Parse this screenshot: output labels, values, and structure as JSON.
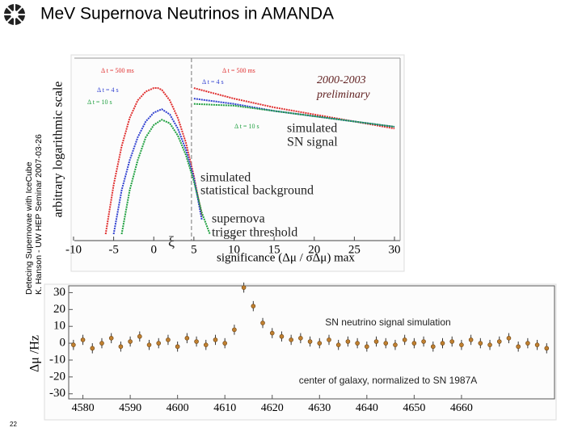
{
  "slide": {
    "title": "MeV Supernova Neutrinos in AMANDA",
    "side_lines": [
      "Detecing Supernovae with IceCube",
      "K. Hanson - UW HEP Seminar 2007-03-26"
    ],
    "page_number": "22"
  },
  "chart_data": [
    {
      "type": "line",
      "xlabel": "significance (Δμ / σΔμ) max",
      "ylabel": "arbitrary logarithmic scale",
      "xlim": [
        -10.3,
        30
      ],
      "xticks": [
        -10,
        -5,
        0,
        5,
        10,
        15,
        20,
        25,
        30
      ],
      "ylim": [
        0,
        100
      ],
      "threshold_x": 4.7,
      "series": [
        {
          "name": "Δ t = 500 ms",
          "color": "#e03030",
          "x": [
            -6,
            -5,
            -4,
            -3,
            -2,
            -1,
            0,
            0.5,
            1,
            2,
            3,
            4,
            5,
            6,
            6.5,
            5,
            10,
            15,
            20,
            25,
            30
          ],
          "values": [
            0,
            28,
            50,
            66,
            76,
            81,
            83,
            83,
            82,
            76,
            66,
            52,
            33,
            10,
            null,
            83,
            77,
            72,
            68,
            64,
            60
          ]
        },
        {
          "name": "Δ t = 4 s",
          "color": "#3040d0",
          "x": [
            -5,
            -4,
            -3,
            -2,
            -1,
            0,
            1,
            2,
            3,
            4,
            5,
            6,
            6.5,
            5,
            10,
            15,
            20,
            25,
            30
          ],
          "values": [
            0,
            25,
            42,
            55,
            64,
            69,
            71,
            68,
            60,
            48,
            32,
            8,
            null,
            77,
            74,
            70,
            67,
            64,
            61
          ]
        },
        {
          "name": "Δ t = 10 s",
          "color": "#20a040",
          "x": [
            -4,
            -3,
            -2,
            -1,
            0,
            1,
            2,
            3,
            4,
            5,
            6,
            7,
            7.5,
            5,
            10,
            15,
            20,
            25,
            30
          ],
          "values": [
            0,
            25,
            42,
            55,
            62,
            65,
            63,
            56,
            45,
            30,
            12,
            0,
            null,
            74,
            73,
            70,
            67,
            64,
            61
          ]
        }
      ],
      "annotations": [
        "2000-2003",
        "preliminary",
        "simulated",
        "SN signal",
        "simulated",
        "statistical background",
        "supernova",
        "trigger threshold",
        "ξ",
        "Δ t = 500 ms",
        "Δ t = 4 s",
        "Δ t = 10 s"
      ]
    },
    {
      "type": "errorbar",
      "ylabel": "Δμ /Hz",
      "xlim": [
        4577,
        4680
      ],
      "xticks": [
        4580,
        4590,
        4600,
        4610,
        4620,
        4630,
        4640,
        4650,
        4660
      ],
      "ylim": [
        -33,
        35
      ],
      "yticks": [
        -30,
        -20,
        -10,
        0,
        10,
        20,
        30
      ],
      "color": "#c08030",
      "x": [
        4578,
        4580,
        4582,
        4584,
        4586,
        4588,
        4590,
        4592,
        4594,
        4596,
        4598,
        4600,
        4602,
        4604,
        4606,
        4608,
        4610,
        4612,
        4614,
        4616,
        4618,
        4620,
        4622,
        4624,
        4626,
        4628,
        4630,
        4632,
        4634,
        4636,
        4638,
        4640,
        4642,
        4644,
        4646,
        4648,
        4650,
        4652,
        4654,
        4656,
        4658,
        4660,
        4662,
        4664,
        4666,
        4668,
        4670,
        4672,
        4674,
        4676,
        4678
      ],
      "values": [
        -1,
        2,
        -3,
        0,
        3,
        -2,
        1,
        4,
        -1,
        0,
        2,
        -2,
        3,
        1,
        -1,
        2,
        0,
        8,
        33,
        22,
        12,
        6,
        4,
        2,
        3,
        1,
        0,
        2,
        -1,
        1,
        0,
        -2,
        1,
        0,
        -1,
        2,
        0,
        1,
        -2,
        0,
        1,
        -1,
        2,
        0,
        -1,
        1,
        3,
        -2,
        0,
        -1,
        -3
      ],
      "errors": [
        3,
        3,
        3,
        3,
        3,
        3,
        3,
        3,
        3,
        3,
        3,
        3,
        3,
        3,
        3,
        3,
        3,
        3,
        3,
        3,
        3,
        3,
        3,
        3,
        3,
        3,
        3,
        3,
        3,
        3,
        3,
        3,
        3,
        3,
        3,
        3,
        3,
        3,
        3,
        3,
        3,
        3,
        3,
        3,
        3,
        3,
        3,
        3,
        3,
        3,
        3
      ],
      "annotations": [
        "SN neutrino signal simulation",
        "center of galaxy, normalized to SN 1987A"
      ]
    }
  ]
}
